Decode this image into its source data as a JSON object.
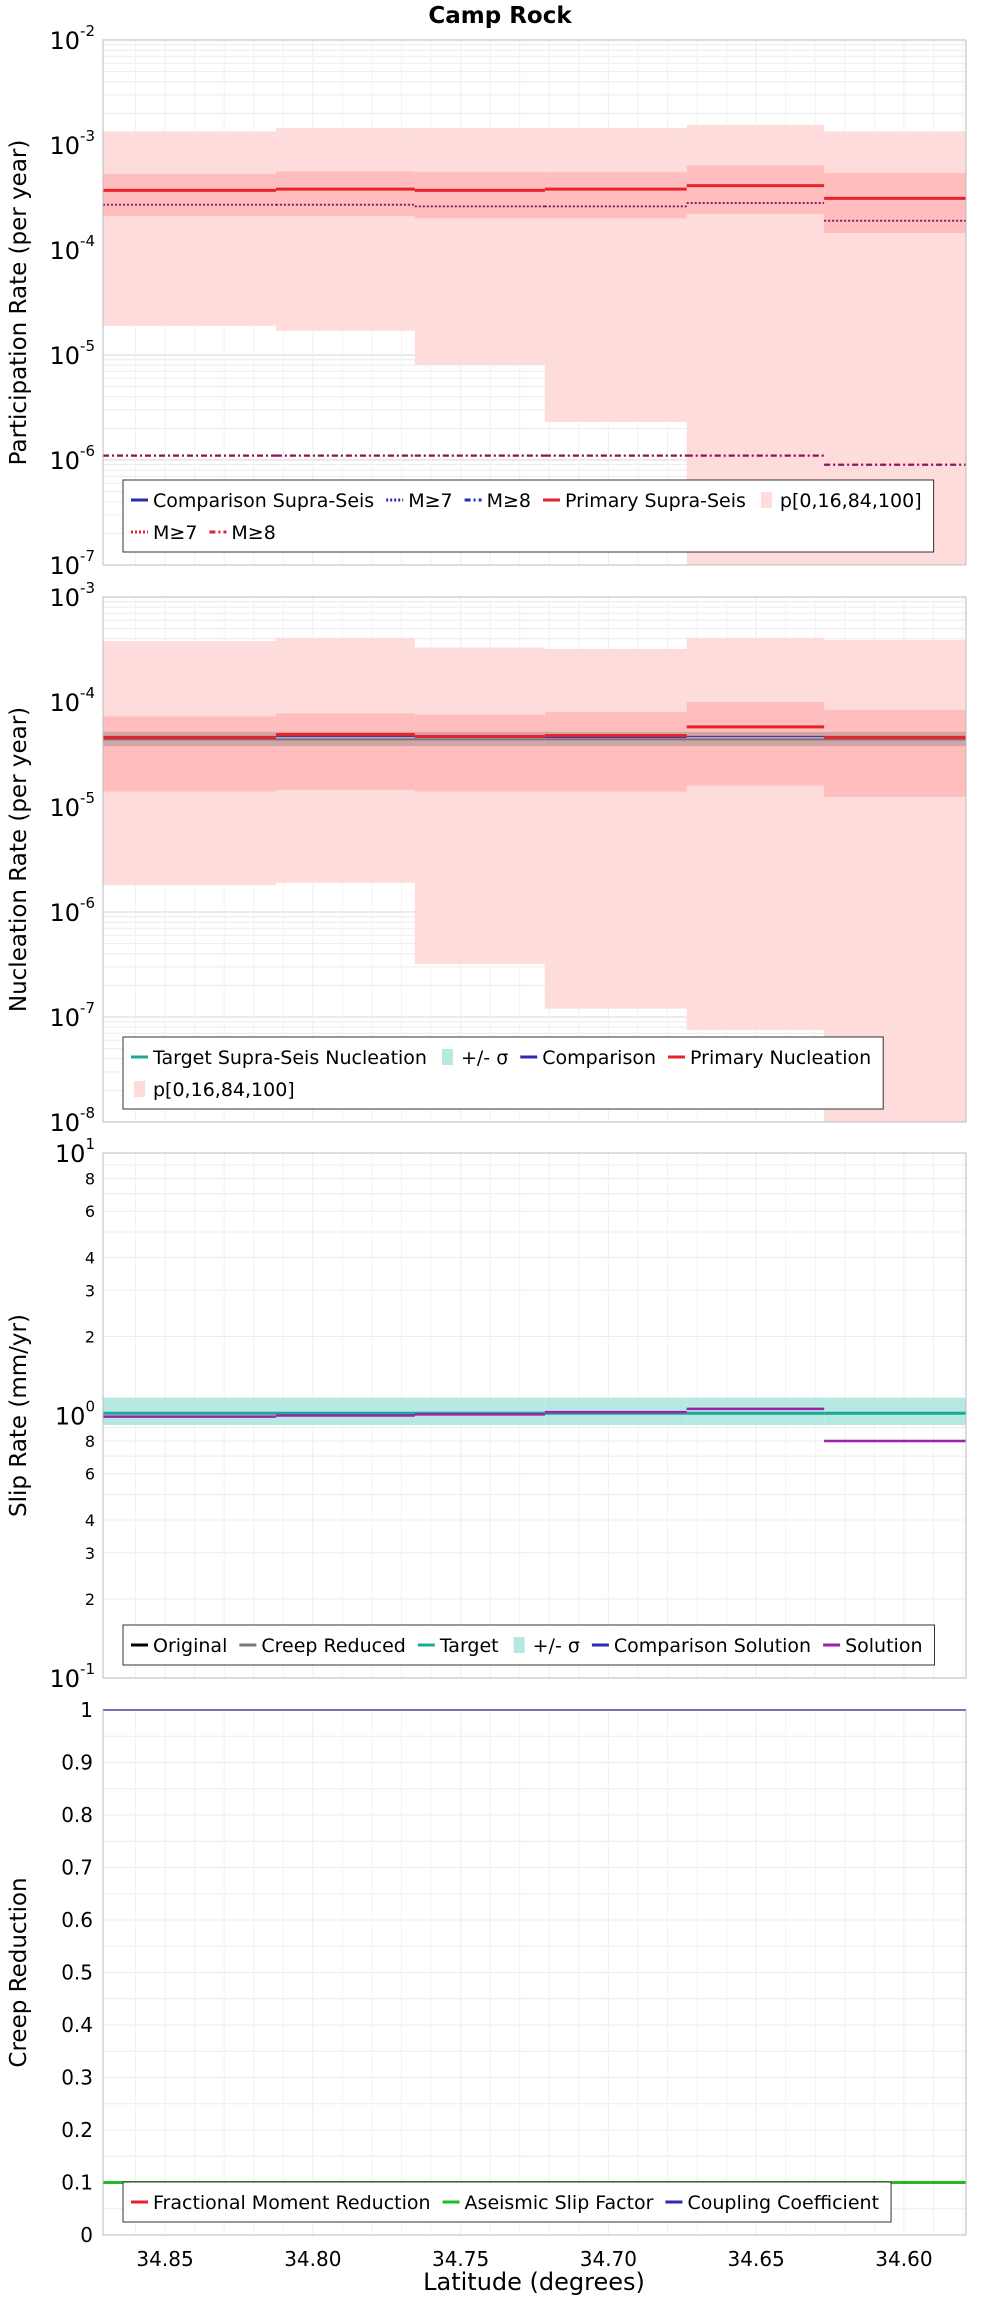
{
  "title": "Camp Rock",
  "xlabel": "Latitude (degrees)",
  "colors": {
    "primary": "#e8222a",
    "band_light": "#ffdcdc",
    "band_dark": "#ffbdbd",
    "comparison": "#2a2ab5",
    "target": "#1aa898",
    "target_band": "#b7e9e3",
    "solution": "#a020a8",
    "gray": "#777777",
    "green": "#22bb22",
    "grid": "#e4e4e4"
  },
  "chart_data": [
    {
      "id": "participation",
      "type": "step",
      "ylabel": "Participation Rate (per year)",
      "yscale": "log",
      "ylim": [
        1e-07,
        0.01
      ],
      "yticks": [
        {
          "v": 0.01,
          "base": "10",
          "exp": "-2"
        },
        {
          "v": 0.001,
          "base": "10",
          "exp": "-3"
        },
        {
          "v": 0.0001,
          "base": "10",
          "exp": "-4"
        },
        {
          "v": 1e-05,
          "base": "10",
          "exp": "-5"
        },
        {
          "v": 1e-06,
          "base": "10",
          "exp": "-6"
        },
        {
          "v": 1e-07,
          "base": "10",
          "exp": "-7"
        }
      ],
      "xlim": [
        34.871,
        34.579
      ],
      "xedges": [
        34.871,
        34.8125,
        34.7655,
        34.7215,
        34.6735,
        34.627,
        34.579
      ],
      "bands": [
        {
          "name": "p0-100",
          "fill": "band_light",
          "low": [
            1.9e-05,
            1.7e-05,
            8e-06,
            2.3e-06,
            1e-07,
            1e-07
          ],
          "high": [
            0.00135,
            0.00145,
            0.00145,
            0.00145,
            0.00155,
            0.00135
          ]
        },
        {
          "name": "p16-84",
          "fill": "band_dark",
          "low": [
            0.00021,
            0.00021,
            0.0002,
            0.0002,
            0.00022,
            0.000145
          ],
          "high": [
            0.00053,
            0.00056,
            0.00055,
            0.00055,
            0.00064,
            0.00054
          ]
        }
      ],
      "lines": [
        {
          "name": "Primary Supra-Seis",
          "color": "primary",
          "width": 3,
          "dash": "",
          "values": [
            0.00037,
            0.00038,
            0.00037,
            0.00038,
            0.00041,
            0.00031
          ]
        },
        {
          "name": "Primary M≥7",
          "color": "primary",
          "width": 2,
          "dash": "2,2",
          "values": [
            0.00027,
            0.00027,
            0.00026,
            0.00026,
            0.00028,
            0.00019
          ]
        },
        {
          "name": "Comparison M≥7",
          "color": "comparison",
          "width": 1,
          "dash": "2,2",
          "values": [
            0.00027,
            0.00027,
            0.00026,
            0.00026,
            0.00028,
            0.00019
          ]
        },
        {
          "name": "Primary M≥8",
          "color": "primary",
          "width": 2.5,
          "dash": "6,3,2,3",
          "values": [
            1.1e-06,
            1.1e-06,
            1.1e-06,
            1.1e-06,
            1.1e-06,
            9e-07
          ]
        },
        {
          "name": "Comparison M≥8",
          "color": "comparison",
          "width": 1,
          "dash": "6,3,2,3",
          "values": [
            1.1e-06,
            1.1e-06,
            1.1e-06,
            1.1e-06,
            1.1e-06,
            9e-07
          ]
        }
      ],
      "legend": {
        "rows": [
          [
            {
              "label": "Comparison Supra-Seis",
              "swatch": "line",
              "color": "comparison",
              "dash": ""
            },
            {
              "label": "M≥7",
              "swatch": "line",
              "color": "comparison",
              "dash": "2,2"
            },
            {
              "label": "M≥8",
              "swatch": "line",
              "color": "comparison",
              "dash": "6,3,2,3"
            },
            {
              "label": "Primary Supra-Seis",
              "swatch": "line",
              "color": "primary",
              "dash": ""
            },
            {
              "label": "p[0,16,84,100]",
              "swatch": "box",
              "color": "band_light",
              "dash": ""
            }
          ],
          [
            {
              "label": "M≥7",
              "swatch": "line",
              "color": "primary",
              "dash": "2,2"
            },
            {
              "label": "M≥8",
              "swatch": "line",
              "color": "primary",
              "dash": "6,3,2,3"
            }
          ]
        ]
      }
    },
    {
      "id": "nucleation",
      "type": "step",
      "ylabel": "Nucleation Rate (per year)",
      "yscale": "log",
      "ylim": [
        1e-08,
        0.001
      ],
      "yticks": [
        {
          "v": 0.001,
          "base": "10",
          "exp": "-3"
        },
        {
          "v": 0.0001,
          "base": "10",
          "exp": "-4"
        },
        {
          "v": 1e-05,
          "base": "10",
          "exp": "-5"
        },
        {
          "v": 1e-06,
          "base": "10",
          "exp": "-6"
        },
        {
          "v": 1e-07,
          "base": "10",
          "exp": "-7"
        },
        {
          "v": 1e-08,
          "base": "10",
          "exp": "-8"
        }
      ],
      "xlim": [
        34.871,
        34.579
      ],
      "xedges": [
        34.871,
        34.8125,
        34.7655,
        34.7215,
        34.6735,
        34.627,
        34.579
      ],
      "bands": [
        {
          "name": "p0-100",
          "fill": "band_light",
          "low": [
            1.8e-06,
            1.9e-06,
            3.2e-07,
            1.2e-07,
            7.5e-08,
            1e-08
          ],
          "high": [
            0.00038,
            0.00041,
            0.00033,
            0.00032,
            0.00041,
            0.00039
          ]
        },
        {
          "name": "p16-84",
          "fill": "band_dark",
          "low": [
            1.4e-05,
            1.45e-05,
            1.4e-05,
            1.4e-05,
            1.6e-05,
            1.25e-05
          ],
          "high": [
            7.3e-05,
            7.8e-05,
            7.6e-05,
            8e-05,
            0.0001,
            8.4e-05
          ]
        },
        {
          "name": "target-sigma",
          "fill": "gray",
          "opacity": 0.35,
          "low": [
            3.8e-05,
            3.8e-05,
            3.8e-05,
            3.8e-05,
            3.8e-05,
            3.8e-05
          ],
          "high": [
            5.2e-05,
            5.2e-05,
            5.2e-05,
            5.2e-05,
            5.2e-05,
            5.2e-05
          ]
        }
      ],
      "lines": [
        {
          "name": "Target Supra-Seis Nucleation",
          "color": "gray",
          "width": 2,
          "dash": "",
          "values": [
            4.4e-05,
            4.4e-05,
            4.4e-05,
            4.4e-05,
            4.4e-05,
            4.4e-05
          ]
        },
        {
          "name": "Comparison",
          "color": "comparison",
          "width": 1,
          "dash": "",
          "values": [
            4.5e-05,
            4.7e-05,
            4.6e-05,
            4.6e-05,
            4.7e-05,
            4.6e-05
          ]
        },
        {
          "name": "Primary Nucleation",
          "color": "primary",
          "width": 3,
          "dash": "",
          "values": [
            4.6e-05,
            4.9e-05,
            4.7e-05,
            4.8e-05,
            5.8e-05,
            4.6e-05
          ]
        }
      ],
      "legend": {
        "rows": [
          [
            {
              "label": "Target Supra-Seis Nucleation",
              "swatch": "line",
              "color": "target",
              "dash": ""
            },
            {
              "label": "+/- σ",
              "swatch": "box",
              "color": "target_band",
              "dash": ""
            },
            {
              "label": "Comparison",
              "swatch": "line",
              "color": "comparison",
              "dash": ""
            },
            {
              "label": "Primary Nucleation",
              "swatch": "line",
              "color": "primary",
              "dash": ""
            }
          ],
          [
            {
              "label": "p[0,16,84,100]",
              "swatch": "box",
              "color": "band_light",
              "dash": ""
            }
          ]
        ]
      }
    },
    {
      "id": "slip",
      "type": "step",
      "ylabel": "Slip Rate (mm/yr)",
      "yscale": "log",
      "ylim": [
        0.1,
        10
      ],
      "yticks": [
        {
          "v": 10,
          "base": "10",
          "exp": "1"
        },
        {
          "v": 1,
          "base": "10",
          "exp": "0"
        },
        {
          "v": 0.1,
          "base": "10",
          "exp": "-1"
        }
      ],
      "minor_labels": [
        {
          "v": 8,
          "label": "8"
        },
        {
          "v": 6,
          "label": "6"
        },
        {
          "v": 4,
          "label": "4"
        },
        {
          "v": 3,
          "label": "3"
        },
        {
          "v": 2,
          "label": "2"
        },
        {
          "v": 0.8,
          "label": "8"
        },
        {
          "v": 0.6,
          "label": "6"
        },
        {
          "v": 0.4,
          "label": "4"
        },
        {
          "v": 0.3,
          "label": "3"
        },
        {
          "v": 0.2,
          "label": "2"
        }
      ],
      "xlim": [
        34.871,
        34.579
      ],
      "xedges": [
        34.871,
        34.8125,
        34.7655,
        34.7215,
        34.6735,
        34.627,
        34.579
      ],
      "bands": [
        {
          "name": "target-sigma",
          "fill": "target_band",
          "low": [
            0.92,
            0.92,
            0.92,
            0.92,
            0.92,
            0.92
          ],
          "high": [
            1.17,
            1.17,
            1.17,
            1.17,
            1.17,
            1.17
          ]
        }
      ],
      "lines": [
        {
          "name": "Target",
          "color": "target",
          "width": 3,
          "dash": "",
          "values": [
            1.02,
            1.02,
            1.02,
            1.02,
            1.02,
            1.02
          ]
        },
        {
          "name": "Comparison Solution",
          "color": "comparison",
          "width": 1,
          "dash": "",
          "values": [
            0.99,
            1.0,
            1.01,
            1.03,
            1.06,
            0.8
          ]
        },
        {
          "name": "Solution",
          "color": "solution",
          "width": 2.5,
          "dash": "",
          "values": [
            0.99,
            1.0,
            1.01,
            1.03,
            1.06,
            0.8
          ]
        }
      ],
      "legend": {
        "rows": [
          [
            {
              "label": "Original",
              "swatch": "line",
              "color": "black",
              "dash": ""
            },
            {
              "label": "Creep Reduced",
              "swatch": "line",
              "color": "gray",
              "dash": ""
            },
            {
              "label": "Target",
              "swatch": "line",
              "color": "target",
              "dash": ""
            },
            {
              "label": "+/- σ",
              "swatch": "box",
              "color": "target_band",
              "dash": ""
            },
            {
              "label": "Comparison Solution",
              "swatch": "line",
              "color": "comparison",
              "dash": ""
            },
            {
              "label": "Solution",
              "swatch": "line",
              "color": "solution",
              "dash": ""
            }
          ]
        ]
      }
    },
    {
      "id": "creep",
      "type": "line",
      "ylabel": "Creep Reduction",
      "yscale": "linear",
      "ylim": [
        0,
        1
      ],
      "yticks": [
        {
          "v": 1,
          "label": "1"
        },
        {
          "v": 0.9,
          "label": "0.9"
        },
        {
          "v": 0.8,
          "label": "0.8"
        },
        {
          "v": 0.7,
          "label": "0.7"
        },
        {
          "v": 0.6,
          "label": "0.6"
        },
        {
          "v": 0.5,
          "label": "0.5"
        },
        {
          "v": 0.4,
          "label": "0.4"
        },
        {
          "v": 0.3,
          "label": "0.3"
        },
        {
          "v": 0.2,
          "label": "0.2"
        },
        {
          "v": 0.1,
          "label": "0.1"
        },
        {
          "v": 0,
          "label": "0"
        }
      ],
      "xlim": [
        34.871,
        34.579
      ],
      "xticks": [
        {
          "v": 34.85,
          "label": "34.85"
        },
        {
          "v": 34.8,
          "label": "34.80"
        },
        {
          "v": 34.75,
          "label": "34.75"
        },
        {
          "v": 34.7,
          "label": "34.70"
        },
        {
          "v": 34.65,
          "label": "34.65"
        },
        {
          "v": 34.6,
          "label": "34.60"
        }
      ],
      "lines": [
        {
          "name": "Coupling Coefficient",
          "color": "comparison",
          "width": 2,
          "dash": "",
          "x": [
            34.871,
            34.579
          ],
          "values": [
            1.0,
            1.0
          ]
        },
        {
          "name": "Aseismic Slip Factor",
          "color": "green",
          "width": 3,
          "dash": "",
          "x": [
            34.871,
            34.579
          ],
          "values": [
            0.1,
            0.1
          ]
        }
      ],
      "legend": {
        "rows": [
          [
            {
              "label": "Fractional Moment Reduction",
              "swatch": "line",
              "color": "primary",
              "dash": ""
            },
            {
              "label": "Aseismic Slip Factor",
              "swatch": "line",
              "color": "green",
              "dash": ""
            },
            {
              "label": "Coupling Coefficient",
              "swatch": "line",
              "color": "comparison",
              "dash": ""
            }
          ]
        ]
      }
    }
  ]
}
